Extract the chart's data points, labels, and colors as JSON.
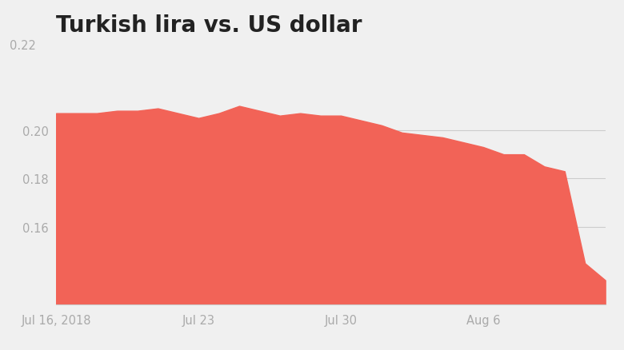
{
  "title": "Turkish lira vs. US dollar",
  "title_fontsize": 20,
  "title_fontweight": "bold",
  "background_color": "#f0f0f0",
  "fill_color": "#F26357",
  "x_tick_labels": [
    "Jul 16, 2018",
    "Jul 23",
    "Jul 30",
    "Aug 6"
  ],
  "ylim": [
    0.128,
    0.228
  ],
  "xlim": [
    0,
    27
  ],
  "dates": [
    0,
    1,
    2,
    3,
    4,
    5,
    6,
    7,
    8,
    9,
    10,
    11,
    12,
    13,
    14,
    15,
    16,
    17,
    18,
    19,
    20,
    21,
    22,
    23,
    24,
    25,
    26,
    27
  ],
  "values": [
    0.207,
    0.207,
    0.207,
    0.208,
    0.208,
    0.209,
    0.207,
    0.205,
    0.207,
    0.21,
    0.208,
    0.206,
    0.207,
    0.206,
    0.206,
    0.204,
    0.202,
    0.199,
    0.198,
    0.197,
    0.195,
    0.193,
    0.19,
    0.19,
    0.185,
    0.183,
    0.145,
    0.138
  ]
}
